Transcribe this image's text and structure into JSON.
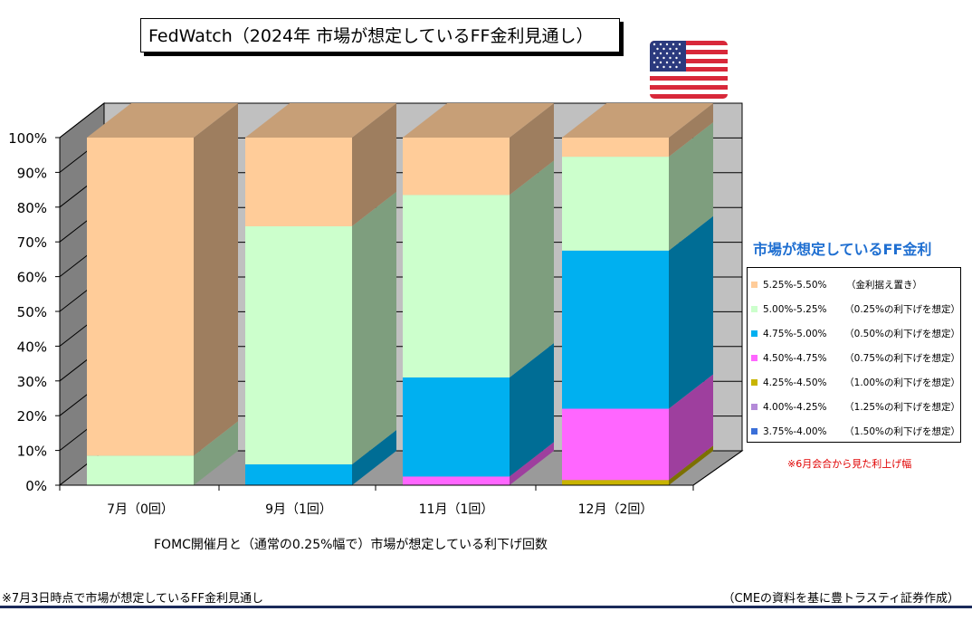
{
  "title": "FedWatch（2024年  市場が想定しているFF金利見通し）",
  "legend_title": "市場が想定しているFF金利",
  "note_red": "※6月会合から見た利上げ幅",
  "x_axis_title": "FOMC開催月と（通常の0.25%幅で）市場が想定している利下げ回数",
  "footnote_left": "※7月3日時点で市場が想定しているFF金利見通し",
  "footnote_right": "（CMEの資料を基に豊トラスティ証券作成）",
  "flag": "us-flag",
  "chart_data": {
    "type": "bar",
    "stacked": true,
    "three_d": true,
    "categories": [
      "7月（0回）",
      "9月（1回）",
      "11月（1回）",
      "12月（2回）"
    ],
    "y_ticks": [
      "0%",
      "10%",
      "20%",
      "30%",
      "40%",
      "50%",
      "60%",
      "70%",
      "80%",
      "90%",
      "100%"
    ],
    "ylim": [
      0,
      100
    ],
    "legend_position": "right",
    "series": [
      {
        "name": "3.75%-4.00%",
        "note": "（1.50%の利下げを想定）",
        "color": "#3a6fd8",
        "values": [
          0,
          0,
          0,
          0
        ]
      },
      {
        "name": "4.00%-4.25%",
        "note": "（1.25%の利下げを想定）",
        "color": "#b48ad8",
        "values": [
          0,
          0,
          0,
          0
        ]
      },
      {
        "name": "4.25%-4.50%",
        "note": "（1.00%の利下げを想定）",
        "color": "#c8b400",
        "values": [
          0,
          0,
          0,
          1.5
        ]
      },
      {
        "name": "4.50%-4.75%",
        "note": "（0.75%の利下げを想定）",
        "color": "#ff66ff",
        "values": [
          0,
          0,
          2.5,
          20.5
        ]
      },
      {
        "name": "4.75%-5.00%",
        "note": "（0.50%の利下げを想定）",
        "color": "#00b0f0",
        "values": [
          0,
          6,
          28.5,
          45.5
        ]
      },
      {
        "name": "5.00%-5.25%",
        "note": "（0.25%の利下げを想定）",
        "color": "#ccffcc",
        "values": [
          8.5,
          68.5,
          52.5,
          27
        ]
      },
      {
        "name": "5.25%-5.50%",
        "note": "（金利据え置き）",
        "color": "#ffcc99",
        "values": [
          91.5,
          25.5,
          16.5,
          5.5
        ]
      }
    ]
  }
}
